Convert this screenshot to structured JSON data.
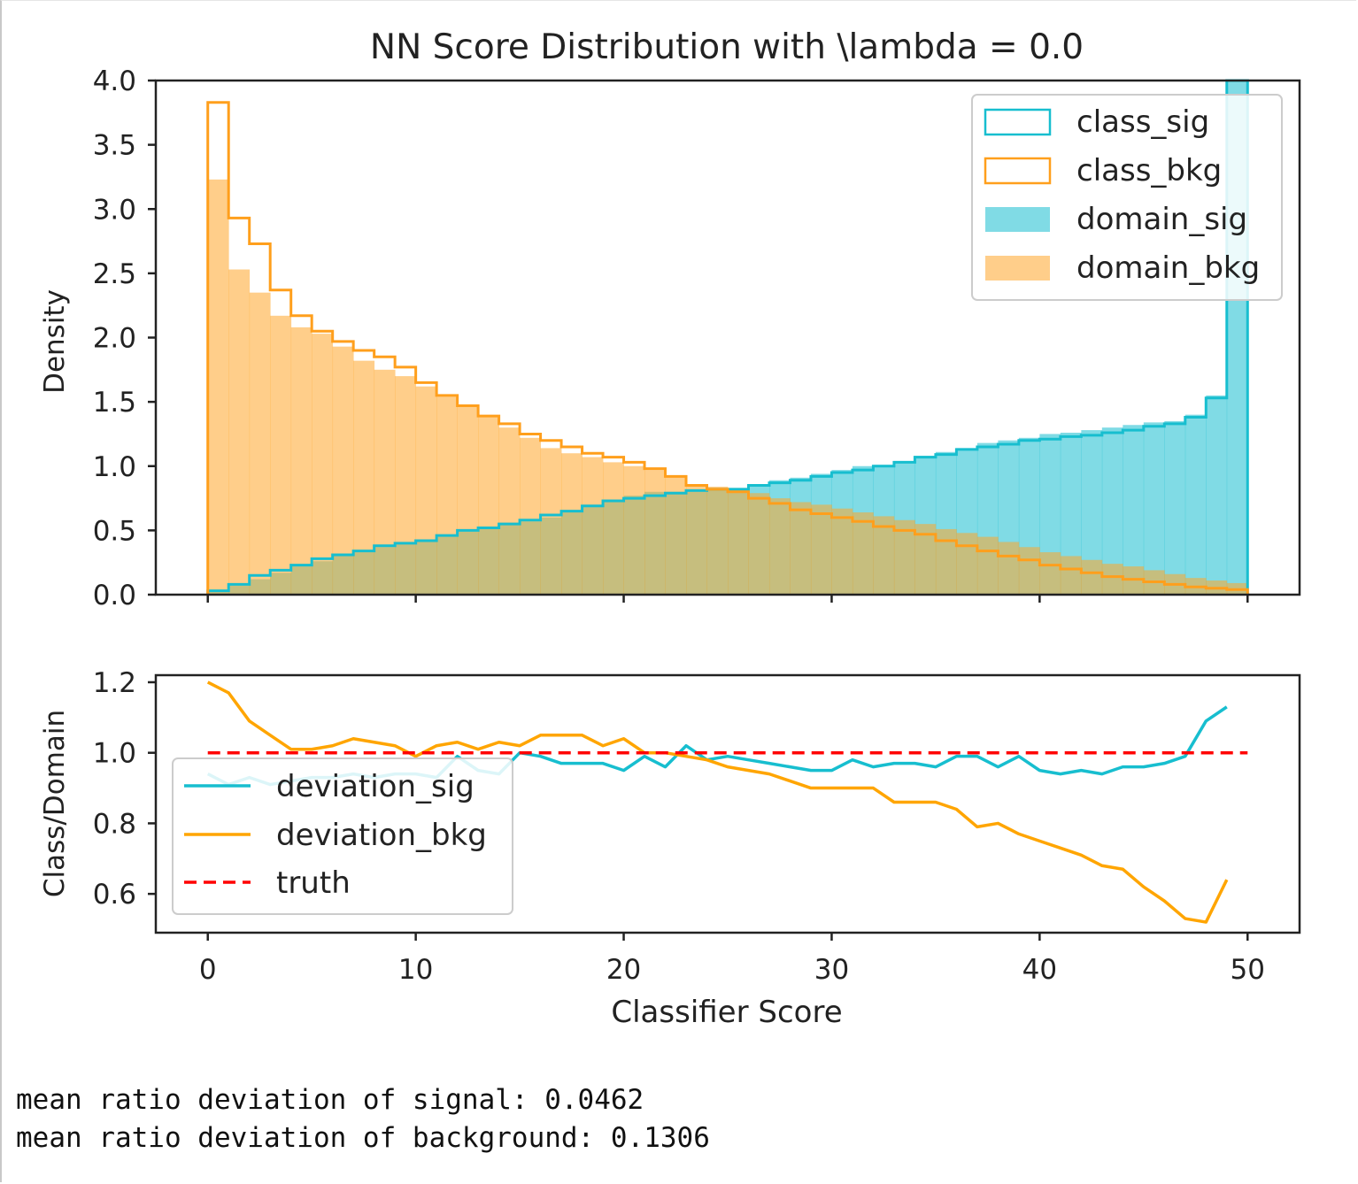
{
  "chart_data": [
    {
      "type": "histogram",
      "title": "NN Score  Distribution with \\lambda = 0.0",
      "xlabel": "",
      "ylabel": "Density",
      "xlim": [
        -2.5,
        52.5
      ],
      "ylim": [
        0,
        4.0
      ],
      "yticks": [
        0.0,
        0.5,
        1.0,
        1.5,
        2.0,
        2.5,
        3.0,
        3.5,
        4.0
      ],
      "ytick_labels": [
        "0.0",
        "0.5",
        "1.0",
        "1.5",
        "2.0",
        "2.5",
        "3.0",
        "3.5",
        "4.0"
      ],
      "xticks": [
        0,
        10,
        20,
        30,
        40,
        50
      ],
      "legend": {
        "position": "top-right",
        "entries": [
          "class_sig",
          "class_bkg",
          "domain_sig",
          "domain_bkg"
        ]
      },
      "bins": [
        0,
        1,
        2,
        3,
        4,
        5,
        6,
        7,
        8,
        9,
        10,
        11,
        12,
        13,
        14,
        15,
        16,
        17,
        18,
        19,
        20,
        21,
        22,
        23,
        24,
        25,
        26,
        27,
        28,
        29,
        30,
        31,
        32,
        33,
        34,
        35,
        36,
        37,
        38,
        39,
        40,
        41,
        42,
        43,
        44,
        45,
        46,
        47,
        48,
        49,
        50
      ],
      "series": [
        {
          "name": "class_sig",
          "style": "step",
          "color": "#17becf",
          "values": [
            0.03,
            0.08,
            0.15,
            0.19,
            0.23,
            0.28,
            0.31,
            0.34,
            0.38,
            0.4,
            0.42,
            0.46,
            0.5,
            0.52,
            0.55,
            0.58,
            0.62,
            0.65,
            0.69,
            0.73,
            0.75,
            0.77,
            0.79,
            0.81,
            0.82,
            0.82,
            0.85,
            0.87,
            0.89,
            0.92,
            0.95,
            0.97,
            1.0,
            1.03,
            1.07,
            1.09,
            1.13,
            1.15,
            1.17,
            1.2,
            1.21,
            1.23,
            1.24,
            1.26,
            1.28,
            1.31,
            1.33,
            1.38,
            1.53,
            4.0
          ]
        },
        {
          "name": "class_bkg",
          "style": "step",
          "color": "#ff9f1c",
          "values": [
            3.83,
            2.93,
            2.73,
            2.37,
            2.17,
            2.05,
            1.97,
            1.9,
            1.85,
            1.77,
            1.65,
            1.55,
            1.47,
            1.39,
            1.33,
            1.25,
            1.2,
            1.15,
            1.1,
            1.07,
            1.03,
            0.98,
            0.92,
            0.85,
            0.82,
            0.8,
            0.75,
            0.71,
            0.66,
            0.63,
            0.6,
            0.57,
            0.53,
            0.5,
            0.47,
            0.42,
            0.38,
            0.34,
            0.3,
            0.27,
            0.23,
            0.2,
            0.17,
            0.14,
            0.12,
            0.1,
            0.08,
            0.06,
            0.05,
            0.04
          ]
        },
        {
          "name": "domain_sig",
          "style": "filled",
          "color": "#17becf",
          "alpha": 0.55,
          "values": [
            0.03,
            0.07,
            0.12,
            0.17,
            0.22,
            0.26,
            0.3,
            0.33,
            0.37,
            0.4,
            0.43,
            0.46,
            0.49,
            0.53,
            0.56,
            0.57,
            0.6,
            0.65,
            0.7,
            0.74,
            0.77,
            0.8,
            0.8,
            0.8,
            0.82,
            0.83,
            0.86,
            0.89,
            0.91,
            0.94,
            0.97,
            1.0,
            1.01,
            1.04,
            1.08,
            1.11,
            1.14,
            1.18,
            1.2,
            1.22,
            1.25,
            1.26,
            1.28,
            1.3,
            1.32,
            1.34,
            1.35,
            1.4,
            1.55,
            4.0
          ]
        },
        {
          "name": "domain_bkg",
          "style": "filled",
          "color": "#ffa52a",
          "alpha": 0.55,
          "values": [
            3.23,
            2.53,
            2.35,
            2.17,
            2.08,
            2.03,
            1.93,
            1.82,
            1.75,
            1.7,
            1.62,
            1.54,
            1.47,
            1.39,
            1.3,
            1.22,
            1.14,
            1.1,
            1.07,
            1.03,
            1.0,
            0.97,
            0.92,
            0.85,
            0.84,
            0.83,
            0.79,
            0.75,
            0.72,
            0.7,
            0.67,
            0.64,
            0.61,
            0.58,
            0.55,
            0.51,
            0.48,
            0.45,
            0.41,
            0.37,
            0.33,
            0.3,
            0.27,
            0.24,
            0.22,
            0.19,
            0.16,
            0.13,
            0.11,
            0.09
          ]
        }
      ]
    },
    {
      "type": "line",
      "title": "",
      "xlabel": "Classifier Score",
      "ylabel": "Class/Domain",
      "xlim": [
        -2.5,
        52.5
      ],
      "ylim": [
        0.49,
        1.22
      ],
      "yticks": [
        0.6,
        0.8,
        1.0,
        1.2
      ],
      "ytick_labels": [
        "0.6",
        "0.8",
        "1.0",
        "1.2"
      ],
      "xticks": [
        0,
        10,
        20,
        30,
        40,
        50
      ],
      "xtick_labels": [
        "0",
        "10",
        "20",
        "30",
        "40",
        "50"
      ],
      "legend": {
        "position": "bottom-left",
        "entries": [
          "deviation_sig",
          "deviation_bkg",
          "truth"
        ]
      },
      "x": [
        0,
        1,
        2,
        3,
        4,
        5,
        6,
        7,
        8,
        9,
        10,
        11,
        12,
        13,
        14,
        15,
        16,
        17,
        18,
        19,
        20,
        21,
        22,
        23,
        24,
        25,
        26,
        27,
        28,
        29,
        30,
        31,
        32,
        33,
        34,
        35,
        36,
        37,
        38,
        39,
        40,
        41,
        42,
        43,
        44,
        45,
        46,
        47,
        48,
        49
      ],
      "series": [
        {
          "name": "deviation_sig",
          "style": "solid",
          "color": "#17becf",
          "values": [
            0.94,
            0.91,
            0.93,
            0.91,
            0.92,
            0.93,
            0.93,
            0.94,
            0.93,
            0.94,
            0.94,
            0.93,
            0.99,
            0.95,
            0.94,
            1.0,
            0.99,
            0.97,
            0.97,
            0.97,
            0.95,
            0.99,
            0.96,
            1.02,
            0.98,
            0.99,
            0.98,
            0.97,
            0.96,
            0.95,
            0.95,
            0.98,
            0.96,
            0.97,
            0.97,
            0.96,
            0.99,
            0.99,
            0.96,
            0.99,
            0.95,
            0.94,
            0.95,
            0.94,
            0.96,
            0.96,
            0.97,
            0.99,
            1.09,
            1.13
          ]
        },
        {
          "name": "deviation_bkg",
          "style": "solid",
          "color": "#ffa500",
          "values": [
            1.2,
            1.17,
            1.09,
            1.05,
            1.01,
            1.01,
            1.02,
            1.04,
            1.03,
            1.02,
            0.99,
            1.02,
            1.03,
            1.01,
            1.03,
            1.02,
            1.05,
            1.05,
            1.05,
            1.02,
            1.04,
            1.0,
            1.0,
            0.99,
            0.98,
            0.96,
            0.95,
            0.94,
            0.92,
            0.9,
            0.9,
            0.9,
            0.9,
            0.86,
            0.86,
            0.86,
            0.84,
            0.79,
            0.8,
            0.77,
            0.75,
            0.73,
            0.71,
            0.68,
            0.67,
            0.62,
            0.58,
            0.53,
            0.52,
            0.64
          ]
        },
        {
          "name": "truth",
          "style": "dashed",
          "color": "#ff0000",
          "x": [
            0,
            50
          ],
          "values": [
            1.0,
            1.0
          ]
        }
      ]
    }
  ],
  "output_lines": [
    "mean ratio deviation of signal: 0.0462",
    "mean ratio deviation of background: 0.1306"
  ]
}
